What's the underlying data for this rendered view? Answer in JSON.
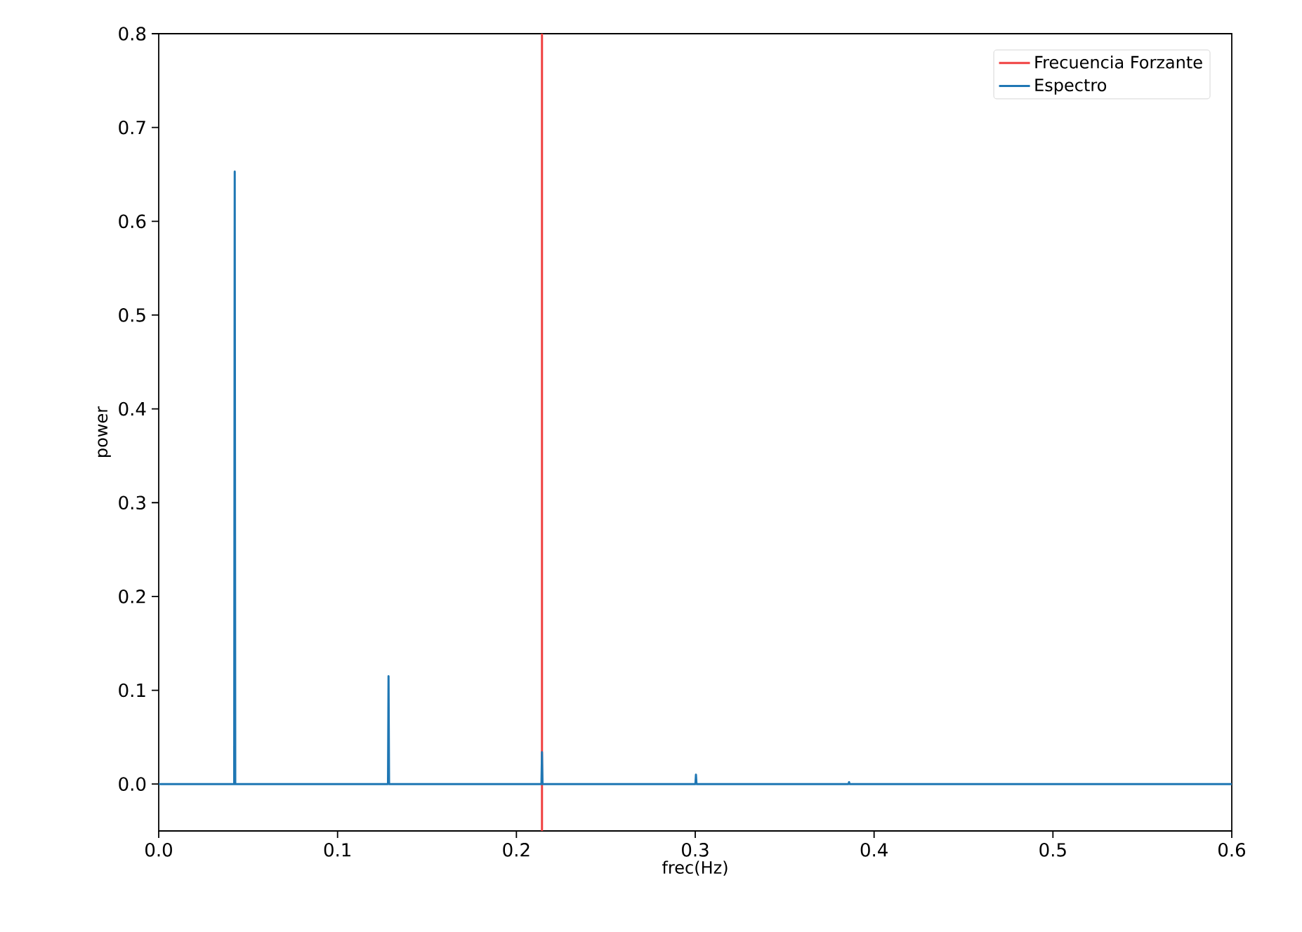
{
  "chart_data": {
    "type": "line",
    "xlabel": "frec(Hz)",
    "ylabel": "power",
    "xlim": [
      0,
      0.6
    ],
    "ylim": [
      -0.05,
      0.8
    ],
    "xticks": [
      {
        "value": 0,
        "label": "0.0"
      },
      0.1,
      0.2,
      0.3,
      0.4,
      0.5,
      {
        "value": 0.6,
        "label": "0.6"
      }
    ],
    "yticks": [
      {
        "value": 0,
        "label": "0.0"
      },
      0.1,
      0.2,
      0.3,
      0.4,
      0.5,
      0.6,
      0.7,
      {
        "value": 0.8,
        "label": "0.8"
      }
    ],
    "legend": "top right",
    "grid": false,
    "marker": "none",
    "line_style": "solid",
    "series": [
      {
        "name": "Frecuencia Forzante",
        "color": "#f04040",
        "x": [
          0.2143,
          0.2143
        ],
        "values": [
          -0.05,
          0.8
        ]
      },
      {
        "name": "Espectro",
        "color": "#1f77b4",
        "x": [
          0,
          0.0422,
          0.0425,
          0.0428,
          0.1282,
          0.1285,
          0.1288,
          0.214,
          0.2143,
          0.2146,
          0.3001,
          0.3004,
          0.3007,
          0.3857,
          0.386,
          0.3863,
          0.6
        ],
        "values": [
          0,
          0,
          0.653,
          0,
          0,
          0.115,
          0,
          0,
          0.034,
          0,
          0,
          0.01,
          0,
          0,
          0.002,
          0,
          0
        ]
      }
    ]
  }
}
